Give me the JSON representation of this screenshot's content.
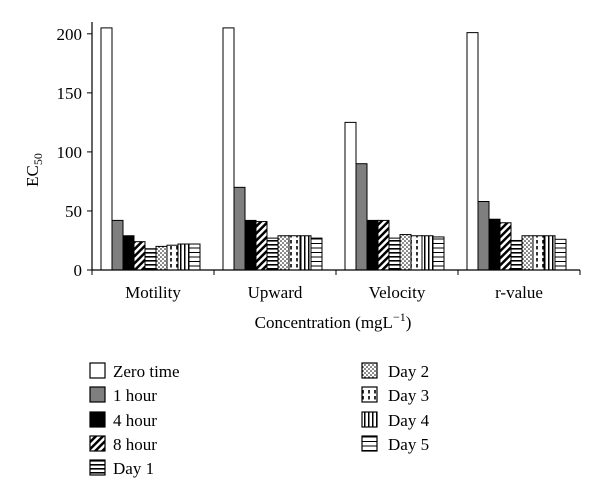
{
  "chart_data": {
    "type": "bar",
    "title": "",
    "xlabel_base": "Concentration (mgL",
    "xlabel_sup": "−1",
    "xlabel_close": ")",
    "ylabel_base": "EC",
    "ylabel_sub": "50",
    "ylim": [
      0,
      210
    ],
    "yticks": [
      0,
      50,
      100,
      150,
      200
    ],
    "grid": false,
    "legend_position": "bottom",
    "categories": [
      "Motility",
      "Upward",
      "Velocity",
      "r-value"
    ],
    "series": [
      {
        "name": "Zero time",
        "pattern": "white",
        "values": [
          205,
          205,
          125,
          201
        ]
      },
      {
        "name": "1 hour",
        "pattern": "gray",
        "values": [
          42,
          70,
          90,
          58
        ]
      },
      {
        "name": "4 hour",
        "pattern": "black",
        "values": [
          29,
          42,
          42,
          43
        ]
      },
      {
        "name": "8 hour",
        "pattern": "diagonal",
        "values": [
          24,
          41,
          42,
          40
        ]
      },
      {
        "name": "Day 1",
        "pattern": "hlines",
        "values": [
          18,
          27,
          27,
          25
        ]
      },
      {
        "name": "Day 2",
        "pattern": "dots",
        "values": [
          20,
          29,
          30,
          29
        ]
      },
      {
        "name": "Day 3",
        "pattern": "dash",
        "values": [
          21,
          29,
          29,
          29
        ]
      },
      {
        "name": "Day 4",
        "pattern": "vlines",
        "values": [
          22,
          29,
          29,
          29
        ]
      },
      {
        "name": "Day 5",
        "pattern": "hlines2",
        "values": [
          22,
          27,
          28,
          26
        ]
      }
    ]
  }
}
